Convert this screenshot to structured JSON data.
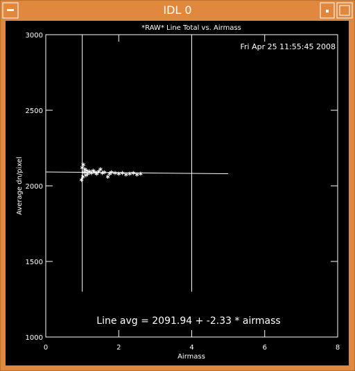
{
  "window": {
    "title": "IDL 0"
  },
  "chart_data": {
    "type": "scatter",
    "title": "*RAW* Line Total vs. Airmass",
    "timestamp": "Fri Apr 25 11:55:45 2008",
    "x_label": "Airmass",
    "y_label": "Average dn/pixel",
    "annotation": "Line avg = 2091.94 + -2.33 * airmass",
    "color": "#ffffff",
    "xlim": [
      0,
      8
    ],
    "xticks": [
      0,
      2,
      4,
      6,
      8
    ],
    "ylim": [
      1000,
      3000
    ],
    "yticks": [
      1000,
      1500,
      2000,
      2500,
      3000
    ],
    "x": [
      0.98,
      1.0,
      1.02,
      1.03,
      1.05,
      1.07,
      1.1,
      1.12,
      1.15,
      1.2,
      1.25,
      1.3,
      1.35,
      1.4,
      1.45,
      1.5,
      1.55,
      1.6,
      1.7,
      1.75,
      1.8,
      1.9,
      2.0,
      2.1,
      2.2,
      2.3,
      2.4,
      2.5,
      2.6
    ],
    "values": [
      2040,
      2120,
      2060,
      2140,
      2090,
      2110,
      2070,
      2100,
      2080,
      2095,
      2085,
      2100,
      2090,
      2080,
      2095,
      2110,
      2085,
      2090,
      2060,
      2080,
      2090,
      2085,
      2080,
      2085,
      2075,
      2080,
      2085,
      2075,
      2080
    ],
    "lines": [
      {
        "x": [
          0,
          5
        ],
        "values": [
          2092,
          2080
        ]
      },
      {
        "x": [
          1,
          1
        ],
        "values": [
          1300,
          3000
        ]
      },
      {
        "x": [
          4,
          4
        ],
        "values": [
          1300,
          3000
        ]
      }
    ]
  }
}
